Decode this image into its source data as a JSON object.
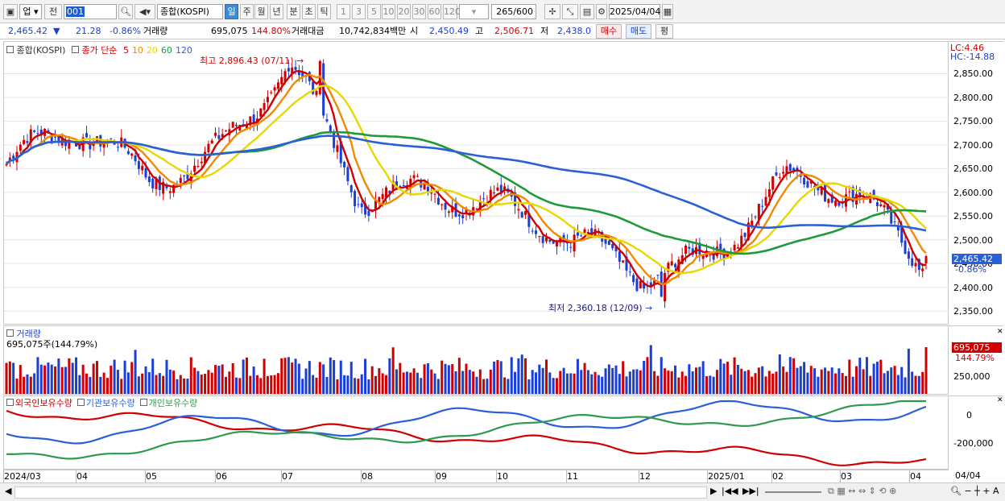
{
  "toolbar": {
    "market_type": "업",
    "prev_button": "전",
    "code_input": "001",
    "index_name": "종합(KOSPI)",
    "period_tabs": [
      {
        "label": "일",
        "active": true
      },
      {
        "label": "주",
        "active": false
      },
      {
        "label": "월",
        "active": false
      },
      {
        "label": "년",
        "active": false
      },
      {
        "label": "분",
        "active": false
      },
      {
        "label": "초",
        "active": false
      },
      {
        "label": "틱",
        "active": false
      }
    ],
    "interval_buttons": [
      "1",
      "3",
      "5",
      "10",
      "20",
      "30",
      "60",
      "120"
    ],
    "count_value": "265",
    "count_max": "/600",
    "date_value": "2025/04/04"
  },
  "quote": {
    "price": "2,465.42",
    "direction_icon": "down-triangle-icon",
    "change": "21.28",
    "change_pct": "-0.86%",
    "volume_label": "거래량",
    "volume": "695,075",
    "volume_ratio": "144.80%",
    "amount_label": "거래대금",
    "amount": "10,742,834백만",
    "open_label": "시",
    "open": "2,450.49",
    "high_label": "고",
    "high": "2,506.71",
    "low_label": "저",
    "low": "2,438.0",
    "buy_button": "매수",
    "sell_button": "매도",
    "eval_button": "평"
  },
  "legend": {
    "index_name": "종합(KOSPI)",
    "ma_label": "종가 단순",
    "ma_periods": [
      {
        "label": "5",
        "color": "#d00000"
      },
      {
        "label": "10",
        "color": "#f08a00"
      },
      {
        "label": "20",
        "color": "#e8d800"
      },
      {
        "label": "60",
        "color": "#1f9a3a"
      },
      {
        "label": "120",
        "color": "#2b5fd8"
      }
    ],
    "lc": "LC:4.46",
    "hc": "HC:-14.88"
  },
  "annotations": {
    "high": "최고 2,896.43 (07/11)",
    "low": "최저 2,360.18 (12/09)"
  },
  "price_axis": {
    "ticks": [
      "2,850.00",
      "2,800.00",
      "2,750.00",
      "2,700.00",
      "2,650.00",
      "2,600.00",
      "2,550.00",
      "2,500.00",
      "2,450.00",
      "2,400.00",
      "2,350.00"
    ],
    "current_price_label": "2,465.42",
    "current_change_label": "-0.86%"
  },
  "volume_panel": {
    "title": "거래량",
    "value_label": "695,075주(144.79%)",
    "axis_ticks": [
      "250,000"
    ],
    "current_label": "695,075",
    "current_pct": "144.79%"
  },
  "investor_panel": {
    "legend": [
      {
        "label": "외국인보유수량",
        "color": "#d00000"
      },
      {
        "label": "기관보유수량",
        "color": "#2b5fd8"
      },
      {
        "label": "개인보유수량",
        "color": "#2f9a4e"
      }
    ],
    "axis_ticks": [
      "0",
      "-200,000"
    ]
  },
  "time_axis": {
    "labels": [
      "2024/03",
      "04",
      "05",
      "06",
      "07",
      "08",
      "09",
      "10",
      "11",
      "12",
      "2025/01",
      "02",
      "03",
      "04"
    ],
    "right_label": "04/04"
  },
  "colors": {
    "up": "#d00000",
    "down": "#1a3fd6",
    "accent": "#3c8ad8"
  },
  "chart_data": {
    "type": "candlestick",
    "title": "종합(KOSPI)",
    "period": "daily",
    "x_range": [
      "2024/03",
      "2025/04/04"
    ],
    "ylim": [
      2340,
      2900
    ],
    "moving_averages": [
      5,
      10,
      20,
      60,
      120
    ],
    "last": {
      "open": 2450.49,
      "high": 2506.71,
      "low": 2438.0,
      "close": 2465.42,
      "change": -21.28,
      "change_pct": -0.86,
      "volume": 695075
    },
    "extremes": {
      "high": {
        "value": 2896.43,
        "date": "07/11"
      },
      "low": {
        "value": 2360.18,
        "date": "12/09"
      }
    },
    "monthly_close_path": [
      {
        "month": "2024/03",
        "close": 2660
      },
      {
        "month": "2024/04",
        "close": 2700
      },
      {
        "month": "2024/05",
        "close": 2640
      },
      {
        "month": "2024/06",
        "close": 2720
      },
      {
        "month": "2024/07",
        "close": 2850
      },
      {
        "month": "2024/08",
        "close": 2560
      },
      {
        "month": "2024/09",
        "close": 2640
      },
      {
        "month": "2024/10",
        "close": 2590
      },
      {
        "month": "2024/11",
        "close": 2460
      },
      {
        "month": "2024/12",
        "close": 2420
      },
      {
        "month": "2025/01",
        "close": 2510
      },
      {
        "month": "2025/02",
        "close": 2620
      },
      {
        "month": "2025/03",
        "close": 2560
      },
      {
        "month": "2025/04",
        "close": 2465
      }
    ]
  }
}
